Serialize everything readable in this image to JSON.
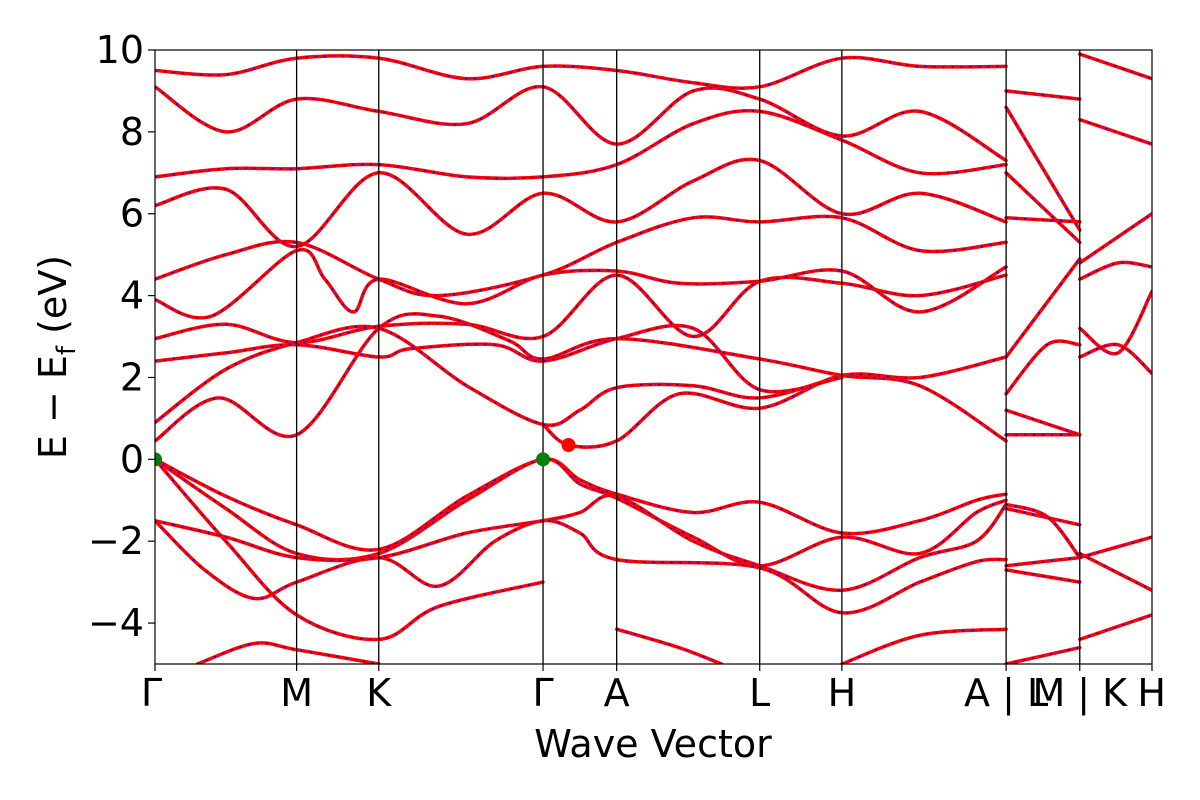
{
  "chart_data": {
    "type": "line",
    "title": "",
    "xlabel": "Wave Vector",
    "ylabel": "E − E",
    "ylabel_sub": "f",
    "ylabel_unit": " (eV)",
    "ylim": [
      -5,
      10
    ],
    "yticks": [
      -4,
      -2,
      0,
      2,
      4,
      6,
      8,
      10
    ],
    "ytick_labels": [
      "−4",
      "−2",
      "0",
      "2",
      "4",
      "6",
      "8",
      "10"
    ],
    "kpath": {
      "positions": [
        0,
        1.0,
        1.58,
        2.74,
        3.26,
        4.27,
        4.85,
        6.01,
        6.53,
        7.04
      ],
      "labels": [
        "Γ",
        "M",
        "K",
        "Γ",
        "A",
        "L",
        "H",
        "A | L",
        "M | K",
        "H"
      ],
      "segment_breaks": [
        6.01,
        6.53
      ]
    },
    "colors": {
      "band_dft": "#ff0000",
      "band_fit": "#0000ff",
      "vbm_marker": "#008000",
      "cbm_marker": "#ff0000"
    },
    "markers": [
      {
        "type": "vbm",
        "x": 0.0,
        "y": 0.0
      },
      {
        "type": "vbm",
        "x": 2.74,
        "y": 0.0
      },
      {
        "type": "cbm",
        "x": 2.92,
        "y": 0.35
      }
    ],
    "series": [
      {
        "values": [
          [
            0,
            0
          ],
          [
            0.5,
            -0.9
          ],
          [
            1.0,
            -1.6
          ],
          [
            1.58,
            -2.2
          ],
          [
            2.2,
            -0.9
          ],
          [
            2.74,
            0
          ],
          [
            3.0,
            -0.5
          ],
          [
            3.26,
            -0.85
          ],
          [
            3.8,
            -1.3
          ],
          [
            4.27,
            -1.05
          ],
          [
            4.85,
            -1.8
          ],
          [
            5.4,
            -1.5
          ],
          [
            5.8,
            -1.0
          ],
          [
            6.01,
            -0.85
          ]
        ]
      },
      {
        "values": [
          [
            0,
            0
          ],
          [
            0.5,
            -1.2
          ],
          [
            1.0,
            -2.3
          ],
          [
            1.58,
            -2.3
          ],
          [
            2.2,
            -1.0
          ],
          [
            2.74,
            0
          ],
          [
            3.0,
            -0.6
          ],
          [
            3.26,
            -0.95
          ],
          [
            3.8,
            -1.9
          ],
          [
            4.27,
            -2.6
          ],
          [
            4.85,
            -1.9
          ],
          [
            5.4,
            -2.3
          ],
          [
            5.8,
            -1.3
          ],
          [
            6.01,
            -1.0
          ]
        ]
      },
      {
        "values": [
          [
            0,
            -1.5
          ],
          [
            0.5,
            -1.9
          ],
          [
            1.0,
            -2.4
          ],
          [
            1.58,
            -2.4
          ],
          [
            2.2,
            -1.8
          ],
          [
            2.74,
            -1.5
          ],
          [
            3.0,
            -1.3
          ],
          [
            3.26,
            -0.9
          ],
          [
            3.8,
            -2.0
          ],
          [
            4.27,
            -2.6
          ],
          [
            4.85,
            -3.2
          ],
          [
            5.4,
            -2.4
          ],
          [
            5.8,
            -2.0
          ],
          [
            6.01,
            -1.1
          ]
        ]
      },
      {
        "values": [
          [
            0,
            -1.5
          ],
          [
            0.35,
            -2.7
          ],
          [
            0.7,
            -3.4
          ],
          [
            1.0,
            -3.0
          ],
          [
            1.58,
            -2.4
          ],
          [
            2.0,
            -3.1
          ],
          [
            2.4,
            -2.0
          ],
          [
            2.74,
            -1.5
          ],
          [
            3.0,
            -1.8
          ],
          [
            3.26,
            -2.45
          ],
          [
            4.27,
            -2.65
          ],
          [
            4.85,
            -3.75
          ],
          [
            5.4,
            -3.0
          ],
          [
            5.8,
            -2.5
          ],
          [
            6.01,
            -2.45
          ]
        ]
      },
      {
        "values": [
          [
            0,
            0
          ],
          [
            0.5,
            -2.0
          ],
          [
            1.0,
            -3.8
          ],
          [
            1.58,
            -4.4
          ],
          [
            2.0,
            -3.6
          ],
          [
            2.74,
            -3.0
          ]
        ]
      },
      {
        "values": [
          [
            0.3,
            -5.0
          ],
          [
            0.7,
            -4.5
          ],
          [
            1.0,
            -4.65
          ],
          [
            1.58,
            -5.0
          ]
        ]
      },
      {
        "values": [
          [
            3.26,
            -4.15
          ],
          [
            3.7,
            -4.6
          ],
          [
            4.0,
            -5.0
          ]
        ]
      },
      {
        "values": [
          [
            4.85,
            -5.0
          ],
          [
            5.4,
            -4.3
          ],
          [
            6.01,
            -4.15
          ]
        ]
      },
      {
        "values": [
          [
            0,
            0.45
          ],
          [
            0.45,
            1.5
          ],
          [
            1.0,
            0.6
          ],
          [
            1.58,
            3.2
          ],
          [
            2.0,
            3.5
          ],
          [
            2.5,
            2.9
          ],
          [
            2.74,
            2.45
          ],
          [
            3.26,
            2.95
          ],
          [
            4.27,
            2.45
          ],
          [
            4.85,
            2.05
          ],
          [
            5.4,
            1.8
          ],
          [
            6.01,
            0.45
          ]
        ]
      },
      {
        "values": [
          [
            2.74,
            0.85
          ],
          [
            2.92,
            0.35
          ],
          [
            3.26,
            0.45
          ],
          [
            3.7,
            1.6
          ],
          [
            4.27,
            1.25
          ],
          [
            4.85,
            2.05
          ],
          [
            5.4,
            2.0
          ],
          [
            6.01,
            2.5
          ]
        ]
      },
      {
        "values": [
          [
            0,
            0.9
          ],
          [
            0.5,
            2.2
          ],
          [
            1.0,
            2.85
          ],
          [
            1.58,
            3.2
          ],
          [
            2.2,
            1.8
          ],
          [
            2.74,
            0.85
          ],
          [
            3.0,
            1.2
          ],
          [
            3.26,
            1.75
          ],
          [
            3.8,
            1.8
          ],
          [
            4.27,
            1.5
          ],
          [
            4.85,
            2.05
          ]
        ]
      },
      {
        "values": [
          [
            0,
            2.4
          ],
          [
            0.5,
            2.6
          ],
          [
            1.0,
            2.8
          ],
          [
            1.58,
            2.5
          ],
          [
            1.8,
            2.7
          ],
          [
            2.4,
            2.8
          ],
          [
            2.74,
            2.4
          ],
          [
            3.26,
            2.95
          ],
          [
            3.8,
            3.2
          ],
          [
            4.27,
            1.7
          ],
          [
            4.85,
            2.0
          ]
        ]
      },
      {
        "values": [
          [
            0,
            2.95
          ],
          [
            0.5,
            3.3
          ],
          [
            1.0,
            2.85
          ],
          [
            1.58,
            3.25
          ],
          [
            2.2,
            3.3
          ],
          [
            2.74,
            3.0
          ],
          [
            3.26,
            4.5
          ],
          [
            3.8,
            3.0
          ],
          [
            4.27,
            4.35
          ],
          [
            4.85,
            4.3
          ],
          [
            5.4,
            4.0
          ],
          [
            6.01,
            4.5
          ]
        ]
      },
      {
        "values": [
          [
            0,
            3.9
          ],
          [
            0.4,
            3.5
          ],
          [
            1.0,
            5.1
          ],
          [
            1.2,
            4.4
          ],
          [
            1.4,
            3.6
          ],
          [
            1.58,
            4.4
          ],
          [
            2.2,
            3.8
          ],
          [
            2.74,
            4.5
          ],
          [
            3.26,
            4.6
          ],
          [
            3.7,
            4.3
          ],
          [
            4.27,
            4.35
          ],
          [
            4.85,
            4.6
          ],
          [
            5.4,
            3.6
          ],
          [
            6.01,
            4.7
          ]
        ]
      },
      {
        "values": [
          [
            0,
            4.4
          ],
          [
            0.5,
            5.0
          ],
          [
            1.0,
            5.3
          ],
          [
            1.58,
            4.4
          ],
          [
            2.0,
            4.0
          ],
          [
            2.74,
            4.5
          ],
          [
            3.26,
            5.3
          ],
          [
            3.8,
            5.9
          ],
          [
            4.27,
            5.8
          ],
          [
            4.85,
            5.9
          ],
          [
            5.4,
            5.1
          ],
          [
            6.01,
            5.3
          ]
        ]
      },
      {
        "values": [
          [
            0,
            6.2
          ],
          [
            0.5,
            6.6
          ],
          [
            1.0,
            5.2
          ],
          [
            1.58,
            7.0
          ],
          [
            2.2,
            5.5
          ],
          [
            2.74,
            6.5
          ],
          [
            3.26,
            5.8
          ],
          [
            3.8,
            6.8
          ],
          [
            4.27,
            7.3
          ],
          [
            4.85,
            6.0
          ],
          [
            5.4,
            6.5
          ],
          [
            6.01,
            5.8
          ]
        ]
      },
      {
        "values": [
          [
            0,
            6.9
          ],
          [
            0.5,
            7.1
          ],
          [
            1.0,
            7.1
          ],
          [
            1.58,
            7.2
          ],
          [
            2.2,
            6.9
          ],
          [
            2.74,
            6.9
          ],
          [
            3.26,
            7.2
          ],
          [
            3.8,
            8.2
          ],
          [
            4.27,
            8.5
          ],
          [
            4.85,
            7.8
          ],
          [
            5.4,
            7.0
          ],
          [
            6.01,
            7.2
          ]
        ]
      },
      {
        "values": [
          [
            0,
            9.1
          ],
          [
            0.5,
            8.0
          ],
          [
            1.0,
            8.8
          ],
          [
            1.58,
            8.5
          ],
          [
            2.2,
            8.2
          ],
          [
            2.74,
            9.1
          ],
          [
            3.26,
            7.7
          ],
          [
            3.8,
            9.0
          ],
          [
            4.27,
            8.8
          ],
          [
            4.85,
            7.9
          ],
          [
            5.4,
            8.5
          ],
          [
            6.01,
            7.3
          ]
        ]
      },
      {
        "values": [
          [
            0,
            9.5
          ],
          [
            0.5,
            9.4
          ],
          [
            1.0,
            9.8
          ],
          [
            1.58,
            9.8
          ],
          [
            2.2,
            9.3
          ],
          [
            2.74,
            9.6
          ],
          [
            3.26,
            9.5
          ],
          [
            3.8,
            9.2
          ],
          [
            4.27,
            9.1
          ],
          [
            4.85,
            9.8
          ],
          [
            5.4,
            9.6
          ],
          [
            6.01,
            9.6
          ]
        ]
      },
      {
        "values": [
          [
            6.01,
            -1.2
          ],
          [
            6.53,
            -1.6
          ]
        ]
      },
      {
        "values": [
          [
            6.01,
            -1.1
          ],
          [
            6.3,
            -1.4
          ],
          [
            6.53,
            -2.4
          ]
        ]
      },
      {
        "values": [
          [
            6.01,
            -2.6
          ],
          [
            6.53,
            -2.4
          ]
        ]
      },
      {
        "values": [
          [
            6.01,
            -2.7
          ],
          [
            6.53,
            -3.0
          ]
        ]
      },
      {
        "values": [
          [
            6.01,
            -5.0
          ],
          [
            6.53,
            -4.6
          ]
        ]
      },
      {
        "values": [
          [
            6.01,
            0.6
          ],
          [
            6.53,
            0.6
          ]
        ]
      },
      {
        "values": [
          [
            6.01,
            1.2
          ],
          [
            6.53,
            0.6
          ]
        ]
      },
      {
        "values": [
          [
            6.01,
            1.6
          ],
          [
            6.3,
            2.8
          ],
          [
            6.53,
            2.8
          ]
        ]
      },
      {
        "values": [
          [
            6.01,
            2.5
          ],
          [
            6.53,
            4.9
          ]
        ]
      },
      {
        "values": [
          [
            6.01,
            5.9
          ],
          [
            6.53,
            5.8
          ]
        ]
      },
      {
        "values": [
          [
            6.01,
            7.0
          ],
          [
            6.53,
            5.3
          ]
        ]
      },
      {
        "values": [
          [
            6.01,
            8.6
          ],
          [
            6.53,
            5.6
          ]
        ]
      },
      {
        "values": [
          [
            6.01,
            9.0
          ],
          [
            6.53,
            8.8
          ]
        ]
      },
      {
        "values": [
          [
            6.53,
            -2.4
          ],
          [
            7.04,
            -1.9
          ]
        ]
      },
      {
        "values": [
          [
            6.53,
            -2.3
          ],
          [
            7.04,
            -3.2
          ]
        ]
      },
      {
        "values": [
          [
            6.53,
            -4.4
          ],
          [
            7.04,
            -3.8
          ]
        ]
      },
      {
        "values": [
          [
            6.53,
            2.5
          ],
          [
            6.8,
            2.8
          ],
          [
            7.04,
            2.1
          ]
        ]
      },
      {
        "values": [
          [
            6.53,
            3.2
          ],
          [
            6.8,
            2.6
          ],
          [
            7.04,
            4.1
          ]
        ]
      },
      {
        "values": [
          [
            6.53,
            4.4
          ],
          [
            6.8,
            4.8
          ],
          [
            7.04,
            4.7
          ]
        ]
      },
      {
        "values": [
          [
            6.53,
            4.8
          ],
          [
            7.04,
            6.0
          ]
        ]
      },
      {
        "values": [
          [
            6.53,
            8.3
          ],
          [
            7.04,
            7.7
          ]
        ]
      },
      {
        "values": [
          [
            6.53,
            9.9
          ],
          [
            7.04,
            9.3
          ]
        ]
      }
    ]
  }
}
